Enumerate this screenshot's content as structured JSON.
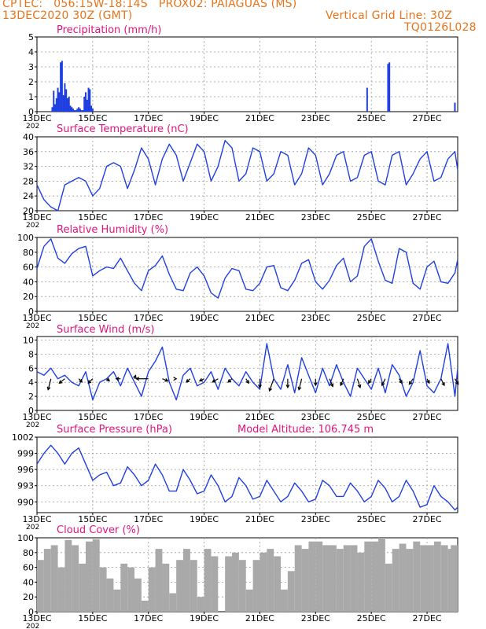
{
  "header": {
    "station_line": "CPTEC:   056:15W-18:14S   PROX02: PAIAGUAS (MS)",
    "date_line": "13DEC2020 30Z (GMT)",
    "grid_line": "Vertical Grid Line: 30Z",
    "code": "TQ0126L028"
  },
  "colors": {
    "header": "#e8741a",
    "titles": "#e0157c",
    "series": "#1f3fe0",
    "cloud": "#a9a9a9",
    "grid": "#9a9a9a"
  },
  "x_axis": {
    "tick_labels": [
      "13DEC",
      "15DEC",
      "17DEC",
      "19DEC",
      "21DEC",
      "23DEC",
      "25DEC",
      "27DEC"
    ],
    "tick_days": [
      13,
      15,
      17,
      19,
      21,
      23,
      25,
      27
    ],
    "year_label": "202",
    "range_days": [
      13,
      28.1
    ]
  },
  "chart_data": [
    {
      "id": "precip",
      "type": "bar",
      "title": "Precipitation  (mm/h)",
      "ylim": [
        0,
        5
      ],
      "yticks": [
        0,
        1,
        2,
        3,
        4,
        5
      ],
      "x": [
        13.55,
        13.6,
        13.65,
        13.7,
        13.75,
        13.8,
        13.85,
        13.9,
        13.95,
        14.0,
        14.05,
        14.1,
        14.15,
        14.2,
        14.25,
        14.3,
        14.35,
        14.4,
        14.45,
        14.5,
        14.55,
        14.6,
        14.65,
        14.7,
        14.75,
        14.8,
        14.85,
        14.9,
        14.95,
        15.0,
        24.85,
        25.6,
        25.65,
        28.0
      ],
      "values": [
        0.3,
        1.4,
        0.5,
        0.9,
        1.6,
        1.3,
        3.3,
        3.4,
        1.1,
        1.9,
        1.5,
        0.9,
        1.0,
        0.4,
        0.3,
        0.2,
        0.1,
        0.1,
        0.2,
        0.3,
        0.2,
        0.1,
        0.1,
        1.0,
        1.3,
        0.8,
        1.6,
        1.5,
        0.4,
        0.2,
        1.6,
        3.2,
        3.3,
        0.6
      ]
    },
    {
      "id": "temp",
      "type": "line",
      "title": "Surface Temperature (nC)",
      "ylim": [
        20,
        40
      ],
      "yticks": [
        20,
        24,
        28,
        32,
        36,
        40
      ],
      "x": [
        13.0,
        13.25,
        13.5,
        13.75,
        14.0,
        14.25,
        14.5,
        14.75,
        15.0,
        15.25,
        15.5,
        15.75,
        16.0,
        16.25,
        16.5,
        16.75,
        17.0,
        17.25,
        17.5,
        17.75,
        18.0,
        18.25,
        18.5,
        18.75,
        19.0,
        19.25,
        19.5,
        19.75,
        20.0,
        20.25,
        20.5,
        20.75,
        21.0,
        21.25,
        21.5,
        21.75,
        22.0,
        22.25,
        22.5,
        22.75,
        23.0,
        23.25,
        23.5,
        23.75,
        24.0,
        24.25,
        24.5,
        24.75,
        25.0,
        25.25,
        25.5,
        25.75,
        26.0,
        26.25,
        26.5,
        26.75,
        27.0,
        27.25,
        27.5,
        27.75,
        28.0,
        28.1
      ],
      "values": [
        27,
        23,
        21,
        20,
        27,
        28,
        29,
        28,
        24,
        26,
        32,
        33,
        32,
        26,
        31,
        37,
        34,
        27,
        34,
        38,
        35,
        28,
        33,
        38,
        36,
        28,
        32,
        39,
        37,
        28,
        30,
        37,
        36,
        28,
        30,
        36,
        35,
        27,
        30,
        37,
        35,
        27,
        30,
        35,
        36,
        28,
        29,
        35,
        36,
        28,
        27,
        35,
        36,
        27,
        30,
        34,
        36,
        28,
        29,
        34,
        36,
        31
      ]
    },
    {
      "id": "rh",
      "type": "line",
      "title": "Relative Humidity (%)",
      "ylim": [
        0,
        100
      ],
      "yticks": [
        0,
        20,
        40,
        60,
        80,
        100
      ],
      "x": [
        13.0,
        13.25,
        13.5,
        13.75,
        14.0,
        14.25,
        14.5,
        14.75,
        15.0,
        15.25,
        15.5,
        15.75,
        16.0,
        16.25,
        16.5,
        16.75,
        17.0,
        17.25,
        17.5,
        17.75,
        18.0,
        18.25,
        18.5,
        18.75,
        19.0,
        19.25,
        19.5,
        19.75,
        20.0,
        20.25,
        20.5,
        20.75,
        21.0,
        21.25,
        21.5,
        21.75,
        22.0,
        22.25,
        22.5,
        22.75,
        23.0,
        23.25,
        23.5,
        23.75,
        24.0,
        24.25,
        24.5,
        24.75,
        25.0,
        25.25,
        25.5,
        25.75,
        26.0,
        26.25,
        26.5,
        26.75,
        27.0,
        27.25,
        27.5,
        27.75,
        28.0,
        28.1
      ],
      "values": [
        58,
        88,
        98,
        72,
        65,
        78,
        85,
        88,
        48,
        55,
        60,
        58,
        72,
        55,
        38,
        28,
        55,
        62,
        75,
        50,
        30,
        28,
        52,
        60,
        48,
        25,
        18,
        45,
        58,
        55,
        30,
        28,
        38,
        60,
        62,
        32,
        28,
        42,
        65,
        70,
        40,
        30,
        42,
        62,
        72,
        40,
        48,
        88,
        98,
        68,
        42,
        38,
        85,
        80,
        38,
        30,
        60,
        68,
        40,
        38,
        52,
        70
      ]
    },
    {
      "id": "wind",
      "type": "line",
      "title": "Surface Wind (m/s)",
      "ylim": [
        0,
        10.5
      ],
      "yticks": [
        0,
        2,
        4,
        6,
        8,
        10
      ],
      "x": [
        13.0,
        13.25,
        13.5,
        13.75,
        14.0,
        14.25,
        14.5,
        14.75,
        15.0,
        15.25,
        15.5,
        15.75,
        16.0,
        16.25,
        16.5,
        16.75,
        17.0,
        17.25,
        17.5,
        17.75,
        18.0,
        18.25,
        18.5,
        18.75,
        19.0,
        19.25,
        19.5,
        19.75,
        20.0,
        20.25,
        20.5,
        20.75,
        21.0,
        21.25,
        21.5,
        21.75,
        22.0,
        22.25,
        22.5,
        22.75,
        23.0,
        23.25,
        23.5,
        23.75,
        24.0,
        24.25,
        24.5,
        24.75,
        25.0,
        25.25,
        25.5,
        25.75,
        26.0,
        26.25,
        26.5,
        26.75,
        27.0,
        27.25,
        27.5,
        27.75,
        28.0,
        28.1
      ],
      "values": [
        5.5,
        5.0,
        6.0,
        4.5,
        5.0,
        4.0,
        3.5,
        5.5,
        1.5,
        4.0,
        4.5,
        5.5,
        3.5,
        6.0,
        4.0,
        2.0,
        5.5,
        7.0,
        9.0,
        4.0,
        1.5,
        5.0,
        6.0,
        3.5,
        4.0,
        5.5,
        3.0,
        6.0,
        4.5,
        3.5,
        5.5,
        4.0,
        3.0,
        9.5,
        4.5,
        3.0,
        6.5,
        2.5,
        7.5,
        5.0,
        2.5,
        6.0,
        3.5,
        6.5,
        4.0,
        2.0,
        6.0,
        4.5,
        3.0,
        6.0,
        2.5,
        6.5,
        5.0,
        2.0,
        4.0,
        8.5,
        3.5,
        2.5,
        4.5,
        9.5,
        2.0,
        6.0
      ],
      "vectors": {
        "x": [
          13.5,
          14.0,
          14.5,
          15.0,
          15.5,
          16.0,
          16.5,
          17.0,
          17.5,
          18.0,
          18.5,
          19.0,
          19.5,
          20.0,
          20.5,
          21.0,
          21.5,
          22.0,
          22.5,
          23.0,
          23.5,
          24.0,
          24.5,
          25.0,
          25.5,
          26.0,
          26.5,
          27.0,
          27.5,
          28.0
        ],
        "u": [
          -0.5,
          -1.0,
          0.6,
          -0.8,
          0.5,
          -0.8,
          0.2,
          -2.2,
          1.0,
          0.0,
          -0.7,
          -0.8,
          -1.0,
          -0.7,
          0.5,
          0.0,
          -0.8,
          0.0,
          -0.5,
          0.0,
          0.6,
          -0.5,
          0.5,
          -0.5,
          -0.6,
          0.5,
          -0.7,
          0.4,
          0.6,
          0.6
        ],
        "v": [
          -2.0,
          -0.8,
          -0.6,
          -0.8,
          -0.4,
          0.0,
          0.6,
          0.0,
          -0.4,
          0.0,
          -0.6,
          -0.4,
          -0.6,
          -0.6,
          -0.8,
          -1.6,
          -2.2,
          -1.6,
          -2.0,
          -1.2,
          -1.4,
          -1.2,
          -1.6,
          -0.8,
          -1.2,
          -0.8,
          -1.0,
          -0.8,
          -1.2,
          -1.0
        ]
      }
    },
    {
      "id": "pres",
      "type": "line",
      "title": "Surface Pressure (hPa)",
      "annotation": "Model Altitude: 106.745 m",
      "ylim": [
        988,
        1002
      ],
      "yticks": [
        990,
        993,
        996,
        999,
        1002
      ],
      "x": [
        13.0,
        13.25,
        13.5,
        13.75,
        14.0,
        14.25,
        14.5,
        14.75,
        15.0,
        15.25,
        15.5,
        15.75,
        16.0,
        16.25,
        16.5,
        16.75,
        17.0,
        17.25,
        17.5,
        17.75,
        18.0,
        18.25,
        18.5,
        18.75,
        19.0,
        19.25,
        19.5,
        19.75,
        20.0,
        20.25,
        20.5,
        20.75,
        21.0,
        21.25,
        21.5,
        21.75,
        22.0,
        22.25,
        22.5,
        22.75,
        23.0,
        23.25,
        23.5,
        23.75,
        24.0,
        24.25,
        24.5,
        24.75,
        25.0,
        25.25,
        25.5,
        25.75,
        26.0,
        26.25,
        26.5,
        26.75,
        27.0,
        27.25,
        27.5,
        27.75,
        28.0,
        28.1
      ],
      "values": [
        997,
        999,
        1000.5,
        999,
        997,
        999,
        1000,
        997,
        994,
        995,
        995.5,
        993,
        993.5,
        996.5,
        995,
        993,
        994,
        997,
        995,
        992,
        992,
        996,
        994,
        991.5,
        992,
        995,
        993,
        990,
        991,
        994.5,
        993,
        990.5,
        991,
        994,
        992,
        990,
        991,
        993.5,
        992,
        990,
        990.5,
        994,
        993,
        991,
        991,
        993.5,
        992,
        990,
        991,
        994,
        992.5,
        990,
        991,
        994,
        992,
        989,
        989.5,
        993,
        991,
        990,
        988.5,
        989
      ]
    },
    {
      "id": "cloud",
      "type": "bar",
      "title": "Cloud Cover (%)",
      "ylim": [
        0,
        100
      ],
      "yticks": [
        0,
        20,
        40,
        60,
        80,
        100
      ],
      "x": [
        13.0,
        13.25,
        13.5,
        13.75,
        14.0,
        14.25,
        14.5,
        14.75,
        15.0,
        15.25,
        15.5,
        15.75,
        16.0,
        16.25,
        16.5,
        16.75,
        17.0,
        17.25,
        17.5,
        17.75,
        18.0,
        18.25,
        18.5,
        18.75,
        19.0,
        19.25,
        19.5,
        19.75,
        20.0,
        20.25,
        20.5,
        20.75,
        21.0,
        21.25,
        21.5,
        21.75,
        22.0,
        22.25,
        22.5,
        22.75,
        23.0,
        23.25,
        23.5,
        23.75,
        24.0,
        24.25,
        24.5,
        24.75,
        25.0,
        25.25,
        25.5,
        25.75,
        26.0,
        26.25,
        26.5,
        26.75,
        27.0,
        27.25,
        27.5,
        27.75,
        28.0
      ],
      "values": [
        70,
        85,
        90,
        60,
        97,
        90,
        65,
        95,
        98,
        60,
        45,
        30,
        65,
        60,
        45,
        15,
        60,
        85,
        65,
        25,
        70,
        85,
        70,
        20,
        85,
        75,
        0,
        75,
        80,
        70,
        30,
        70,
        80,
        85,
        75,
        30,
        55,
        90,
        85,
        95,
        95,
        90,
        90,
        85,
        90,
        90,
        80,
        95,
        95,
        100,
        65,
        85,
        92,
        85,
        95,
        90,
        90,
        95,
        90,
        85,
        90
      ]
    }
  ]
}
